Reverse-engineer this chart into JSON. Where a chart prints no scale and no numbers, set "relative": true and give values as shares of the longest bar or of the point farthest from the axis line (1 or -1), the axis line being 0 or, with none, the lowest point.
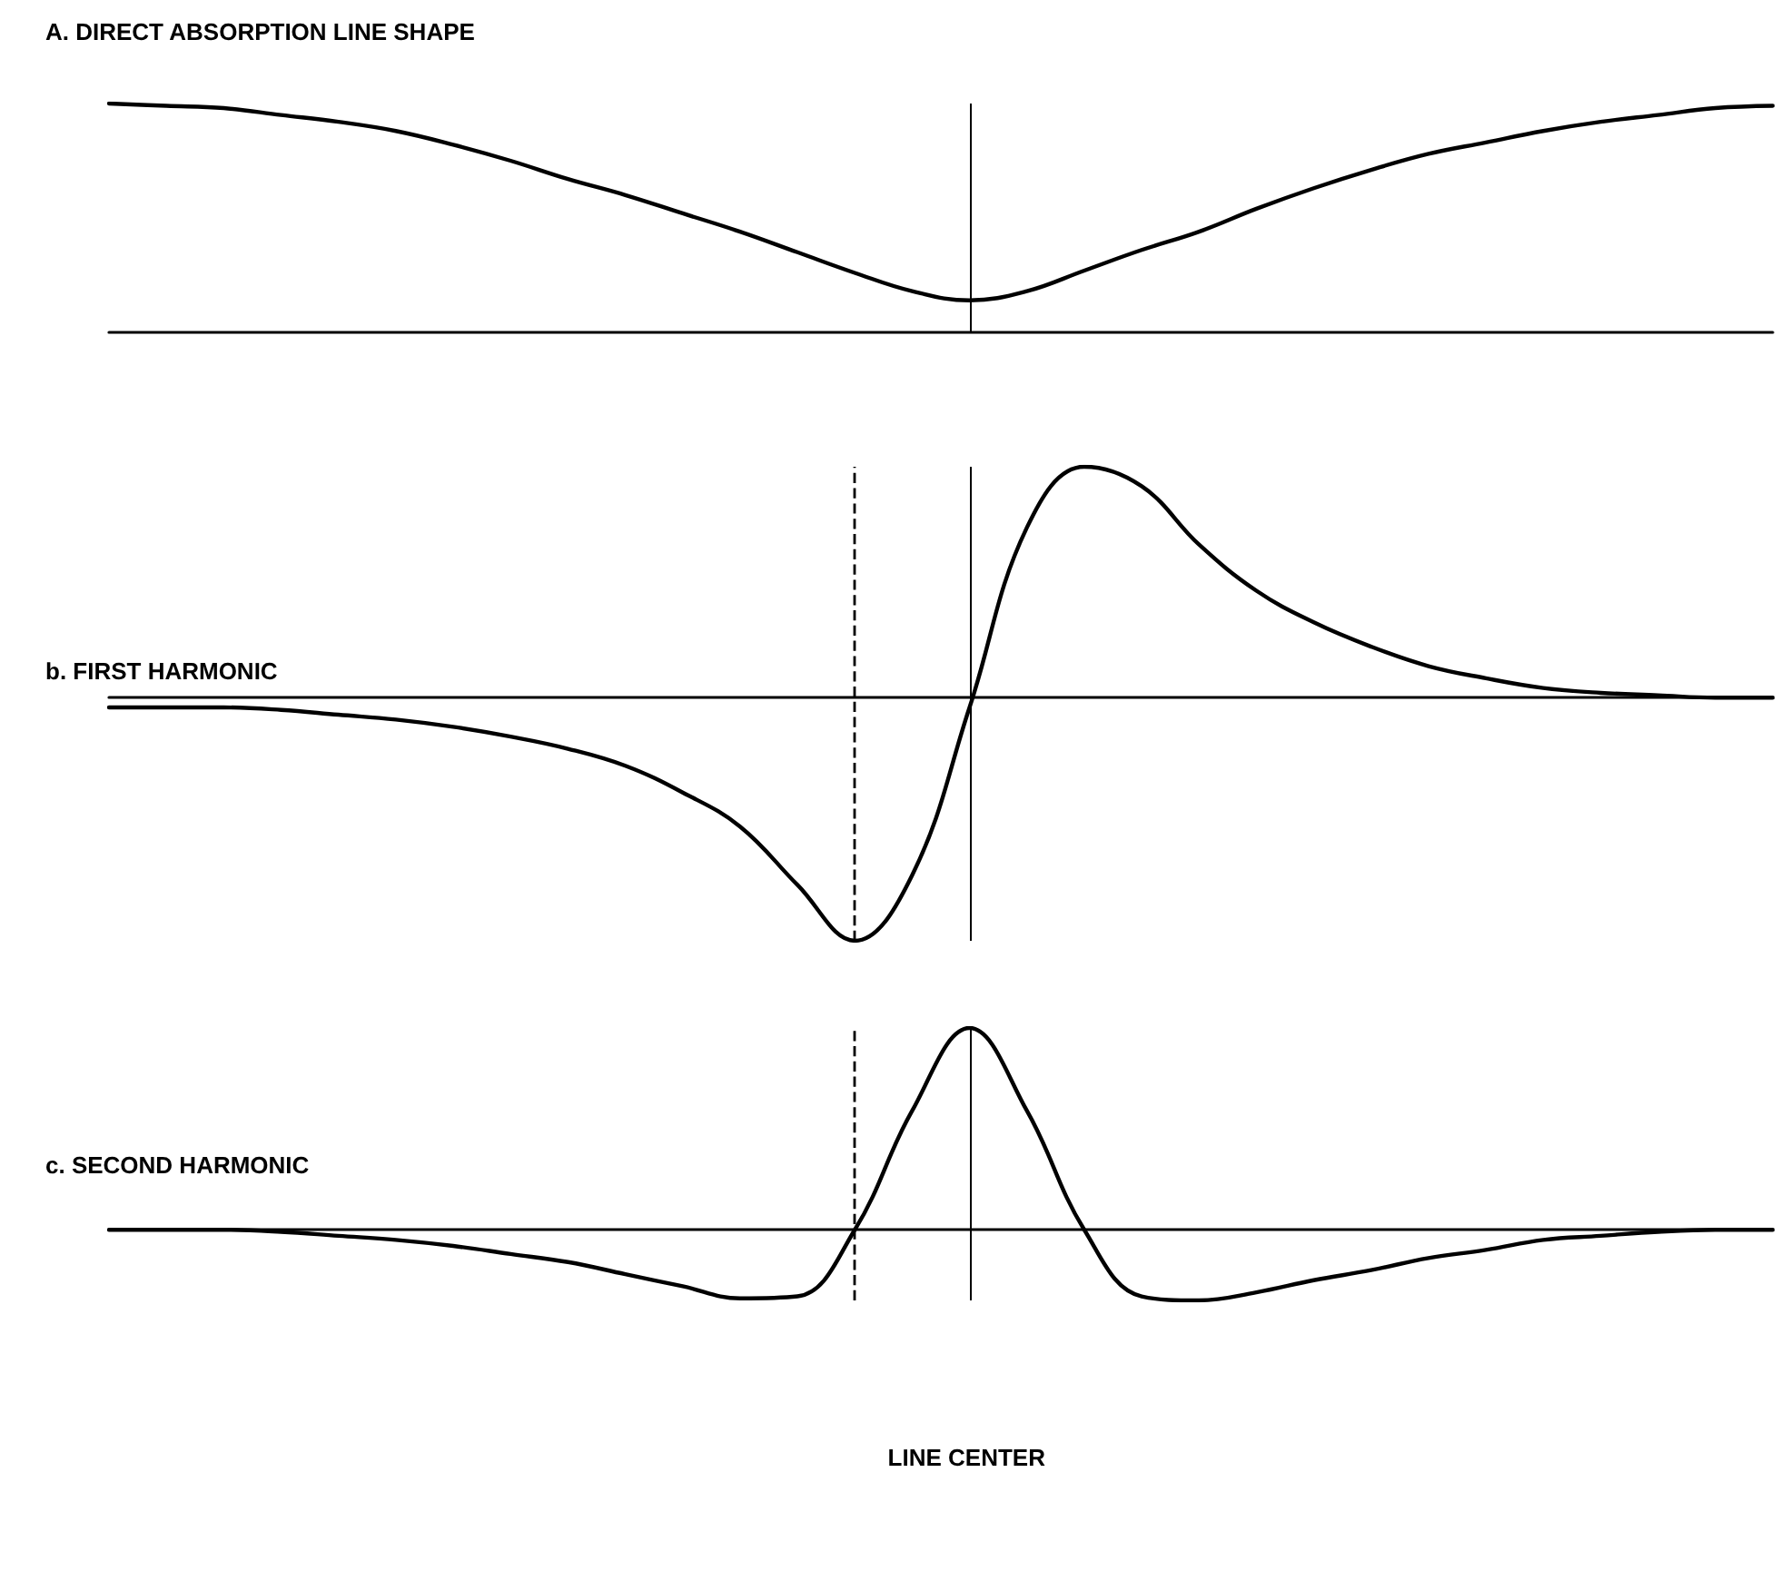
{
  "chart_data": [
    {
      "type": "line",
      "title": "A. DIRECT ABSORPTION LINE SHAPE",
      "relative": true,
      "marker": "none",
      "line_style": "solid",
      "grid": false,
      "categories": [
        null,
        null,
        null,
        null,
        null,
        null,
        null,
        null,
        null,
        null,
        null,
        null,
        null,
        null,
        null,
        null,
        null,
        null,
        null,
        null,
        null,
        null,
        null,
        null,
        null,
        null,
        null,
        null,
        null,
        null
      ],
      "series": [
        {
          "color": "#000000",
          "values": [
            1.0,
            0.99,
            0.98,
            0.95,
            0.92,
            0.88,
            0.82,
            0.75,
            0.67,
            0.6,
            0.52,
            0.44,
            0.35,
            0.26,
            0.18,
            0.14,
            0.18,
            0.27,
            0.36,
            0.44,
            0.54,
            0.63,
            0.71,
            0.78,
            0.83,
            0.88,
            0.92,
            0.95,
            0.98,
            0.99
          ]
        }
      ]
    },
    {
      "type": "line",
      "title": "b. FIRST HARMONIC",
      "relative": true,
      "marker": "none",
      "line_style": "solid",
      "grid": false,
      "categories": [
        null,
        null,
        null,
        null,
        null,
        null,
        null,
        null,
        null,
        null,
        null,
        null,
        null,
        null,
        null,
        null,
        null,
        null,
        null,
        null,
        null,
        null,
        null,
        null,
        null,
        null,
        null,
        null,
        null,
        null
      ],
      "series": [
        {
          "color": "#000000",
          "values": [
            -0.04,
            -0.04,
            -0.04,
            -0.05,
            -0.07,
            -0.09,
            -0.12,
            -0.16,
            -0.21,
            -0.28,
            -0.39,
            -0.53,
            -0.77,
            -1.0,
            -0.73,
            -0.04,
            0.7,
            0.95,
            0.87,
            0.63,
            0.44,
            0.31,
            0.21,
            0.13,
            0.08,
            0.04,
            0.02,
            0.01,
            0,
            0
          ]
        }
      ]
    },
    {
      "type": "line",
      "title": "c. SECOND HARMONIC",
      "relative": true,
      "marker": "none",
      "line_style": "solid",
      "grid": false,
      "categories": [
        null,
        null,
        null,
        null,
        null,
        null,
        null,
        null,
        null,
        null,
        null,
        null,
        null,
        null,
        null,
        null,
        null,
        null,
        null,
        null,
        null,
        null,
        null,
        null,
        null,
        null,
        null,
        null,
        null,
        null
      ],
      "series": [
        {
          "color": "#000000",
          "values": [
            0,
            0,
            0,
            -0.01,
            -0.03,
            -0.05,
            -0.08,
            -0.12,
            -0.16,
            -0.22,
            -0.28,
            -0.34,
            -0.33,
            0,
            0.59,
            1.0,
            0.59,
            0,
            -0.33,
            -0.35,
            -0.31,
            -0.25,
            -0.2,
            -0.14,
            -0.1,
            -0.05,
            -0.03,
            -0.01,
            0,
            0
          ]
        }
      ],
      "annotations": [
        "LINE CENTER"
      ]
    }
  ]
}
